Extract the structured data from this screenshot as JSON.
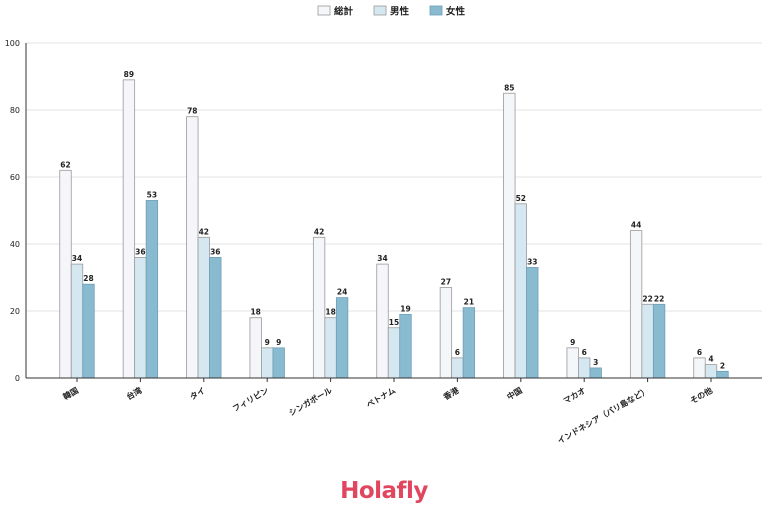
{
  "chart_data": {
    "type": "bar",
    "categories": [
      "韓国",
      "台湾",
      "タイ",
      "フィリピン",
      "シンガポール",
      "ベトナム",
      "香港",
      "中国",
      "マカオ",
      "インドネシア（バリ島など）",
      "その他"
    ],
    "series": [
      {
        "name": "総計",
        "values": [
          62,
          89,
          78,
          18,
          42,
          34,
          27,
          85,
          9,
          44,
          6
        ],
        "color": "#f5f6fa"
      },
      {
        "name": "男性",
        "values": [
          34,
          36,
          42,
          9,
          18,
          15,
          6,
          52,
          6,
          22,
          4
        ],
        "color": "#d5e8f1"
      },
      {
        "name": "女性",
        "values": [
          28,
          53,
          36,
          9,
          24,
          19,
          21,
          33,
          3,
          22,
          2
        ],
        "color": "#88bad0"
      }
    ],
    "ylim": [
      0,
      100
    ],
    "yticks": [
      0,
      20,
      40,
      60,
      80,
      100
    ],
    "grid": true,
    "legend_position": "top-center",
    "title": "",
    "xlabel": "",
    "ylabel": ""
  },
  "brand": {
    "logo_text": "Holafly",
    "color": "#e0475f"
  }
}
